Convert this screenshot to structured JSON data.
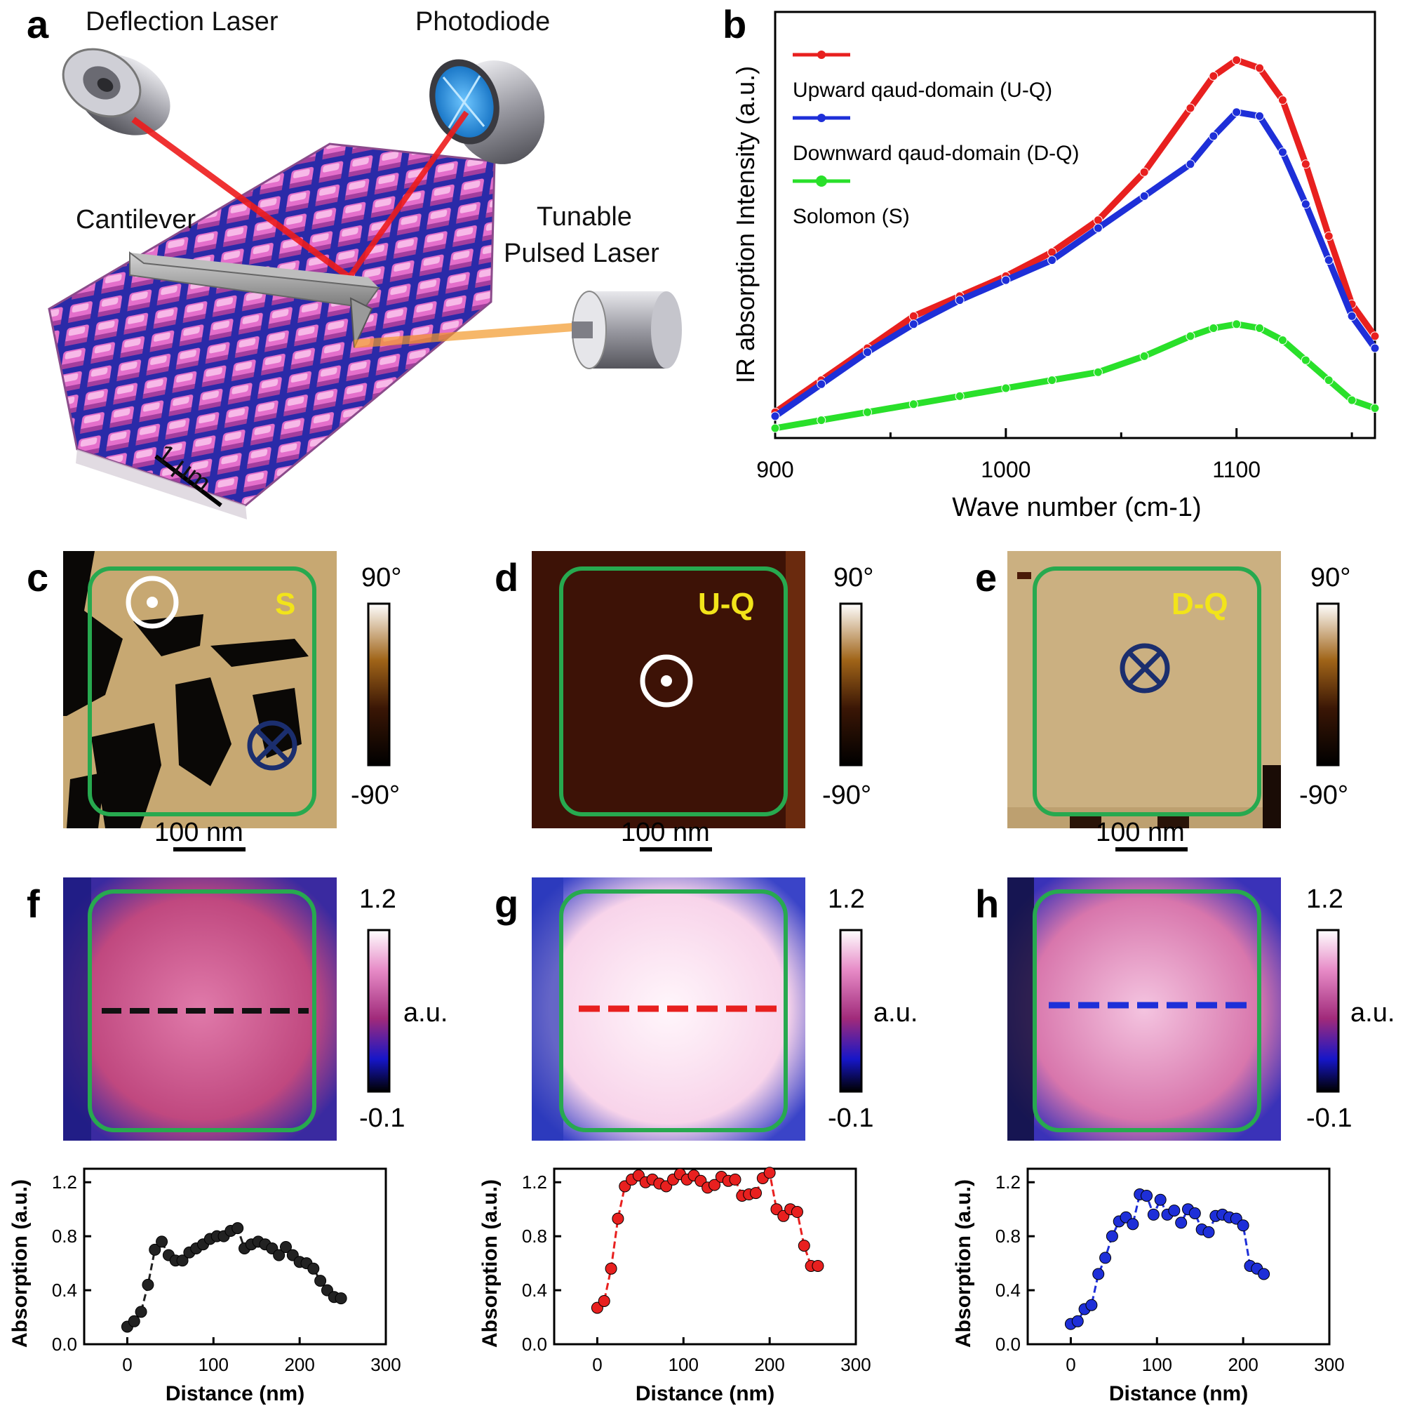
{
  "panel_labels": {
    "a": "a",
    "b": "b",
    "c": "c",
    "d": "d",
    "e": "e",
    "f": "f",
    "g": "g",
    "h": "h"
  },
  "panel_a": {
    "deflection_laser": "Deflection Laser",
    "photodiode": "Photodiode",
    "cantilever": "Cantilever",
    "tunable_line1": "Tunable",
    "tunable_line2": "Pulsed Laser",
    "scale_bar": "1 μm"
  },
  "panel_b": {
    "legend": [
      "Upward qaud-domain (U-Q)",
      "Downward qaud-domain (D-Q)",
      "Solomon (S)"
    ],
    "xlabel": "Wave number (cm-1)",
    "ylabel": "IR absorption Intensity (a.u.)",
    "xticks": [
      "900",
      "1000",
      "1100"
    ]
  },
  "pfm_maps": [
    {
      "tag": "S",
      "scale": "100 nm",
      "cmax": "90°",
      "cmin": "-90°"
    },
    {
      "tag": "U-Q",
      "scale": "100 nm",
      "cmax": "90°",
      "cmin": "-90°"
    },
    {
      "tag": "D-Q",
      "scale": "100 nm",
      "cmax": "90°",
      "cmin": "-90°"
    }
  ],
  "ir_maps": [
    {
      "cmax": "1.2",
      "unit": "a.u.",
      "cmin": "-0.1"
    },
    {
      "cmax": "1.2",
      "unit": "a.u.",
      "cmin": "-0.1"
    },
    {
      "cmax": "1.2",
      "unit": "a.u.",
      "cmin": "-0.1"
    }
  ],
  "profile_axes": {
    "xlabel": "Distance (nm)",
    "ylabel": "Absorption (a.u.)",
    "xticks": [
      "0",
      "100",
      "200",
      "300"
    ],
    "yticks": [
      "0.0",
      "0.4",
      "0.8",
      "1.2"
    ]
  },
  "colors": {
    "uq": "#e8201f",
    "dq": "#1e2fd8",
    "s": "#29e02a",
    "box": "#27a94f",
    "black": "#222222"
  },
  "chart_data": [
    {
      "type": "line",
      "title": "",
      "xlabel": "Wave number (cm-1)",
      "ylabel": "IR absorption Intensity (a.u.)",
      "xlim": [
        900,
        1160
      ],
      "ylim": [
        0,
        1.0
      ],
      "series": [
        {
          "name": "Upward qaud-domain (U-Q)",
          "color": "#e8201f",
          "x": [
            900,
            920,
            940,
            960,
            980,
            1000,
            1020,
            1040,
            1060,
            1080,
            1090,
            1100,
            1110,
            1120,
            1130,
            1140,
            1150,
            1160
          ],
          "y": [
            0.04,
            0.12,
            0.2,
            0.28,
            0.33,
            0.38,
            0.44,
            0.52,
            0.64,
            0.8,
            0.88,
            0.92,
            0.9,
            0.82,
            0.66,
            0.48,
            0.31,
            0.23
          ]
        },
        {
          "name": "Downward qaud-domain (D-Q)",
          "color": "#1e2fd8",
          "x": [
            900,
            920,
            940,
            960,
            980,
            1000,
            1020,
            1040,
            1060,
            1080,
            1090,
            1100,
            1110,
            1120,
            1130,
            1140,
            1150,
            1160
          ],
          "y": [
            0.03,
            0.11,
            0.19,
            0.26,
            0.32,
            0.37,
            0.42,
            0.5,
            0.58,
            0.66,
            0.73,
            0.79,
            0.78,
            0.69,
            0.56,
            0.42,
            0.28,
            0.2
          ]
        },
        {
          "name": "Solomon (S)",
          "color": "#29e02a",
          "x": [
            900,
            920,
            940,
            960,
            980,
            1000,
            1020,
            1040,
            1060,
            1080,
            1090,
            1100,
            1110,
            1120,
            1130,
            1140,
            1150,
            1160
          ],
          "y": [
            0.0,
            0.02,
            0.04,
            0.06,
            0.08,
            0.1,
            0.12,
            0.14,
            0.18,
            0.23,
            0.25,
            0.26,
            0.25,
            0.22,
            0.17,
            0.12,
            0.07,
            0.05
          ]
        }
      ]
    },
    {
      "type": "line",
      "title": "",
      "xlabel": "Distance (nm)",
      "ylabel": "Absorption (a.u.)",
      "xlim": [
        -50,
        300
      ],
      "ylim": [
        0,
        1.3
      ],
      "color": "#222222",
      "x": [
        0,
        8,
        16,
        24,
        32,
        40,
        48,
        56,
        64,
        72,
        80,
        88,
        96,
        104,
        112,
        120,
        128,
        136,
        144,
        152,
        160,
        168,
        176,
        184,
        192,
        200,
        208,
        216,
        224,
        232,
        240,
        248
      ],
      "y": [
        0.13,
        0.17,
        0.24,
        0.44,
        0.7,
        0.76,
        0.66,
        0.62,
        0.62,
        0.68,
        0.71,
        0.74,
        0.78,
        0.8,
        0.8,
        0.84,
        0.86,
        0.71,
        0.74,
        0.76,
        0.74,
        0.71,
        0.66,
        0.72,
        0.66,
        0.61,
        0.6,
        0.56,
        0.47,
        0.4,
        0.35,
        0.34
      ]
    },
    {
      "type": "line",
      "title": "",
      "xlabel": "Distance (nm)",
      "ylabel": "Absorption (a.u.)",
      "xlim": [
        -50,
        300
      ],
      "ylim": [
        0,
        1.3
      ],
      "color": "#e8201f",
      "x": [
        0,
        8,
        16,
        24,
        32,
        40,
        48,
        56,
        64,
        72,
        80,
        88,
        96,
        104,
        112,
        120,
        128,
        136,
        144,
        152,
        160,
        168,
        176,
        184,
        192,
        200,
        208,
        216,
        224,
        232,
        240,
        248,
        256
      ],
      "y": [
        0.27,
        0.32,
        0.56,
        0.93,
        1.17,
        1.22,
        1.25,
        1.2,
        1.22,
        1.19,
        1.17,
        1.22,
        1.26,
        1.22,
        1.25,
        1.21,
        1.16,
        1.18,
        1.24,
        1.21,
        1.22,
        1.1,
        1.11,
        1.12,
        1.23,
        1.27,
        1.0,
        0.95,
        1.0,
        0.98,
        0.73,
        0.58,
        0.58
      ]
    },
    {
      "type": "line",
      "title": "",
      "xlabel": "Distance (nm)",
      "ylabel": "Absorption (a.u.)",
      "xlim": [
        -50,
        300
      ],
      "ylim": [
        0,
        1.3
      ],
      "color": "#1e2fd8",
      "x": [
        0,
        8,
        16,
        24,
        32,
        40,
        48,
        56,
        64,
        72,
        80,
        88,
        96,
        104,
        112,
        120,
        128,
        136,
        144,
        152,
        160,
        168,
        176,
        184,
        192,
        200,
        208,
        216,
        224
      ],
      "y": [
        0.15,
        0.17,
        0.26,
        0.29,
        0.52,
        0.64,
        0.8,
        0.91,
        0.94,
        0.89,
        1.11,
        1.1,
        0.96,
        1.07,
        0.96,
        0.99,
        0.9,
        1.0,
        0.97,
        0.85,
        0.83,
        0.95,
        0.96,
        0.94,
        0.93,
        0.88,
        0.58,
        0.56,
        0.52
      ]
    }
  ]
}
